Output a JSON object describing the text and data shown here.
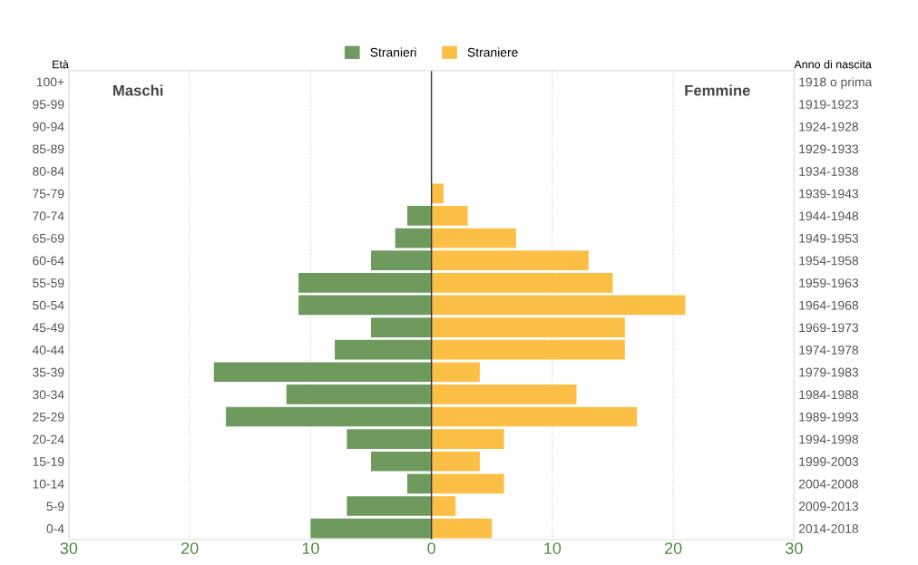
{
  "chart_data": {
    "type": "bar",
    "orientation": "horizontal",
    "stacked": true,
    "categories": [
      "100+",
      "95-99",
      "90-94",
      "85-89",
      "80-84",
      "75-79",
      "70-74",
      "65-69",
      "60-64",
      "55-59",
      "50-54",
      "45-49",
      "40-44",
      "35-39",
      "30-34",
      "25-29",
      "20-24",
      "15-19",
      "10-14",
      "5-9",
      "0-4"
    ],
    "y2_categories": [
      "1918 o prima",
      "1919-1923",
      "1924-1928",
      "1929-1933",
      "1934-1938",
      "1939-1943",
      "1944-1948",
      "1949-1953",
      "1954-1958",
      "1959-1963",
      "1964-1968",
      "1969-1973",
      "1974-1978",
      "1979-1983",
      "1984-1988",
      "1989-1993",
      "1994-1998",
      "1999-2003",
      "2004-2008",
      "2009-2013",
      "2014-2018"
    ],
    "series": [
      {
        "name": "Stranieri",
        "color": "#6f9a5e",
        "values": [
          0,
          0,
          0,
          0,
          0,
          0,
          -2,
          -3,
          -5,
          -11,
          -11,
          -5,
          -8,
          -18,
          -12,
          -17,
          -7,
          -5,
          -2,
          -7,
          -10
        ]
      },
      {
        "name": "Straniere",
        "color": "#fbbf45",
        "values": [
          0,
          0,
          0,
          0,
          0,
          1,
          3,
          7,
          13,
          15,
          21,
          16,
          16,
          4,
          12,
          17,
          6,
          4,
          6,
          2,
          5
        ]
      }
    ],
    "xlim": [
      -30,
      30
    ],
    "xticks": [
      {
        "value": -30,
        "label": "30"
      },
      {
        "value": -20,
        "label": "20"
      },
      {
        "value": -10,
        "label": "10"
      },
      0,
      10,
      20,
      30
    ],
    "ylabel": "Età",
    "y2label": "Anno di nascita",
    "annotations": [
      "Maschi",
      "Femmine"
    ],
    "grid": "x",
    "legend": "top"
  }
}
